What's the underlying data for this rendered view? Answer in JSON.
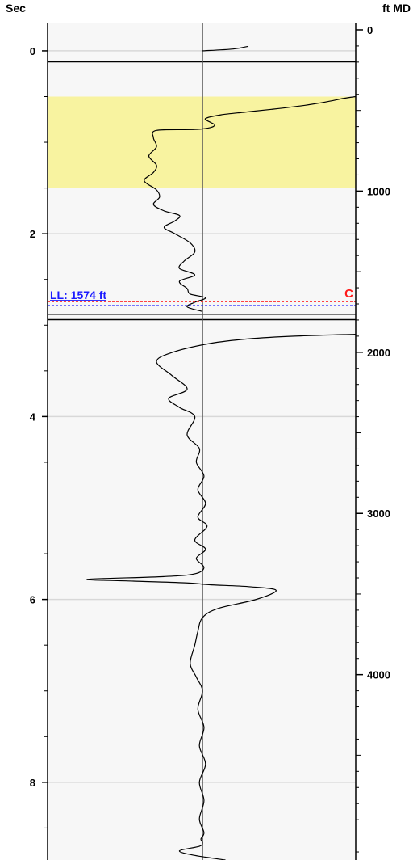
{
  "chart_data": {
    "type": "line",
    "left_axis_unit": "Sec",
    "right_axis_unit": "ft MD",
    "left_ticks": [
      "0",
      "2",
      "4",
      "6",
      "8"
    ],
    "right_ticks": [
      "0",
      "1000",
      "2000",
      "3000",
      "4000"
    ],
    "left_range": [
      -0.3,
      8.85
    ],
    "right_range": [
      -40,
      5150
    ],
    "grid": true,
    "zone": {
      "from_sec": 0.5,
      "to_sec": 1.5,
      "color": "#f8f3a0"
    },
    "marker": {
      "label": "LL: 1574 ft",
      "letter": "C",
      "sec": 2.76,
      "label_color": "#1a1aff",
      "letter_color": "#ff1a1a"
    },
    "boundaries_sec": [
      0.12,
      2.88,
      2.94
    ],
    "baseline": 0,
    "series": [
      {
        "x": [
          0.3,
          0.2,
          0.0
        ],
        "y": [
          -0.05,
          -0.02,
          0.0
        ]
      },
      {
        "x": [
          1.0,
          0.92,
          0.8,
          0.65,
          0.45,
          0.28,
          0.12,
          0.02,
          0.05,
          0.08,
          0.05,
          -0.05,
          -0.3,
          -0.32,
          -0.3,
          -0.35,
          -0.3,
          -0.32,
          -0.38,
          -0.3,
          -0.28,
          -0.32,
          -0.25,
          -0.15,
          -0.18,
          -0.25,
          -0.18,
          -0.08,
          -0.05,
          -0.12,
          -0.15,
          -0.05,
          -0.15,
          -0.1,
          -0.08,
          0.02,
          -0.05,
          -0.1,
          0.0
        ],
        "y": [
          0.5,
          0.52,
          0.56,
          0.6,
          0.64,
          0.67,
          0.7,
          0.74,
          0.78,
          0.81,
          0.84,
          0.86,
          0.87,
          0.95,
          1.05,
          1.15,
          1.25,
          1.33,
          1.42,
          1.52,
          1.6,
          1.68,
          1.75,
          1.8,
          1.86,
          1.93,
          2.0,
          2.1,
          2.2,
          2.3,
          2.38,
          2.45,
          2.52,
          2.6,
          2.66,
          2.7,
          2.75,
          2.8,
          2.85
        ]
      },
      {
        "x": [
          1.0,
          0.6,
          0.3,
          0.05,
          -0.2,
          -0.3,
          -0.2,
          -0.1,
          -0.22,
          -0.15,
          -0.05,
          -0.1,
          -0.02,
          -0.04,
          0.01,
          -0.03,
          0.02,
          -0.03,
          0.03,
          -0.05,
          0.02,
          -0.04,
          0.01,
          -0.05,
          -0.25,
          -0.75,
          -0.45,
          -0.1,
          0.05,
          0.3,
          0.48,
          0.35,
          0.1,
          0.0,
          -0.03,
          -0.05,
          -0.08,
          -0.04,
          0.0,
          -0.03,
          0.01,
          -0.02,
          0.02,
          -0.02,
          0.01,
          -0.02,
          0.01,
          -0.01,
          0.0,
          -0.02,
          -0.15,
          -0.05,
          0.15
        ],
        "y": [
          3.1,
          3.12,
          3.15,
          3.2,
          3.3,
          3.4,
          3.55,
          3.7,
          3.8,
          3.9,
          4.0,
          4.2,
          4.35,
          4.5,
          4.65,
          4.8,
          4.95,
          5.1,
          5.2,
          5.35,
          5.45,
          5.55,
          5.65,
          5.72,
          5.75,
          5.78,
          5.8,
          5.82,
          5.84,
          5.86,
          5.9,
          6.0,
          6.1,
          6.2,
          6.35,
          6.5,
          6.7,
          6.85,
          7.0,
          7.2,
          7.4,
          7.6,
          7.8,
          8.0,
          8.2,
          8.4,
          8.55,
          8.62,
          8.66,
          8.7,
          8.75,
          8.8,
          8.85
        ]
      }
    ]
  }
}
